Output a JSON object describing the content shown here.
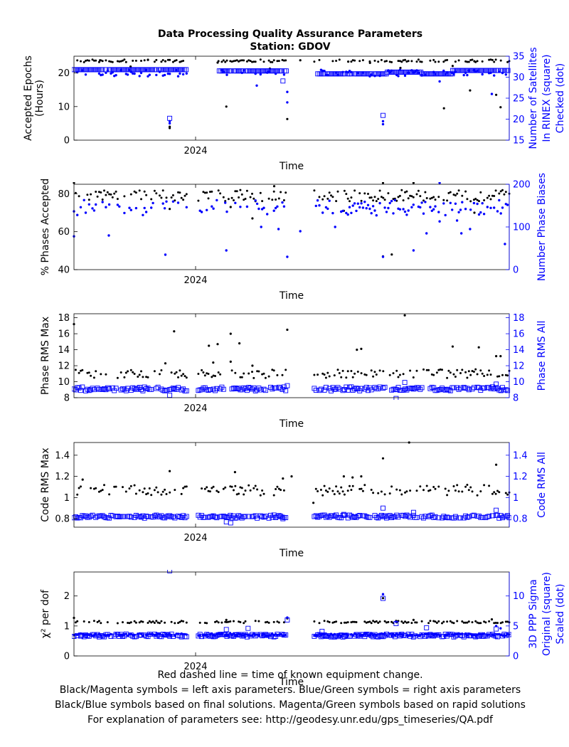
{
  "title": {
    "line1": "Data Processing Quality Assurance Parameters",
    "line2": "Station: GDOV"
  },
  "footer": {
    "line1": "Red dashed line = time of known equipment change.",
    "line2": "Black/Magenta symbols = left axis parameters. Blue/Green symbols = right axis parameters",
    "line3": "Black/Blue symbols based on final solutions.  Magenta/Green symbols based on rapid solutions",
    "line4": "For explanation of parameters see: http://geodesy.unr.edu/gps_timeseries/QA.pdf"
  },
  "colors": {
    "left": "#000000",
    "right": "#0000ff",
    "axes": "#000000"
  },
  "chart_data": [
    {
      "type": "scatter",
      "xlabel": "Time",
      "xtick": "2024",
      "ylabel_left": [
        "Accepted Epochs",
        "(Hours)"
      ],
      "ylabel_right": [
        "Number of Satellites",
        "In RINEX (square)",
        "Checked (dot)"
      ],
      "ylim_left": [
        0,
        25
      ],
      "yticks_left": [
        0,
        10,
        20
      ],
      "ylim_right": [
        15,
        35
      ],
      "yticks_right": [
        15,
        20,
        25,
        30,
        35
      ],
      "grid": false,
      "left_base": 23.6,
      "left_noise": 0.4,
      "left_density": 0.55,
      "left_outliers": [
        [
          0.22,
          3.6
        ],
        [
          0.22,
          4.0
        ],
        [
          0.35,
          10.0
        ],
        [
          0.49,
          6.3
        ],
        [
          0.97,
          13.5
        ],
        [
          0.98,
          9.8
        ],
        [
          0.52,
          23.8
        ],
        [
          0.92,
          23.5
        ],
        [
          0.63,
          23.4
        ],
        [
          0.68,
          23.0
        ],
        [
          0.75,
          21.5
        ],
        [
          0.87,
          22.1
        ],
        [
          0.13,
          21.9
        ],
        [
          0.06,
          23.8
        ],
        [
          0.91,
          14.8
        ],
        [
          0.85,
          9.5
        ],
        [
          0.21,
          23.5
        ],
        [
          0.33,
          23.1
        ],
        [
          0.45,
          21.3
        ],
        [
          0.17,
          23.9
        ]
      ],
      "right_square_segments": [
        [
          0.0,
          0.33,
          31.8
        ],
        [
          0.33,
          0.54,
          31.5
        ],
        [
          0.56,
          0.72,
          30.8
        ],
        [
          0.72,
          0.8,
          31.2
        ],
        [
          0.8,
          0.87,
          30.8
        ],
        [
          0.87,
          1.0,
          31.6
        ]
      ],
      "right_square_outliers": [
        [
          0.22,
          20.2
        ],
        [
          0.48,
          29.1
        ],
        [
          0.71,
          20.9
        ]
      ],
      "right_dot_base": 31.0,
      "right_dot_noise": 0.8,
      "right_dot_density": 0.45,
      "right_dot_outliers": [
        [
          0.22,
          19.0
        ],
        [
          0.22,
          19.5
        ],
        [
          0.49,
          24.0
        ],
        [
          0.49,
          26.5
        ],
        [
          0.42,
          28.0
        ],
        [
          0.71,
          19.5
        ],
        [
          0.71,
          18.8
        ],
        [
          0.96,
          26.0
        ],
        [
          0.84,
          29.0
        ]
      ],
      "gaps": [
        [
          0.26,
          0.33
        ],
        [
          0.49,
          0.55
        ]
      ]
    },
    {
      "type": "scatter",
      "xlabel": "Time",
      "xtick": "2024",
      "ylabel_left": [
        "% Phases Accepted"
      ],
      "ylabel_right": [
        "Number Phase Biases"
      ],
      "ylim_left": [
        40,
        85
      ],
      "yticks_left": [
        40,
        60,
        80
      ],
      "ylim_right": [
        0,
        200
      ],
      "yticks_right": [
        0,
        100,
        200
      ],
      "grid": false,
      "left_base": 79.0,
      "left_noise": 3.0,
      "left_density": 0.65,
      "left_outliers": [
        [
          0.71,
          47.0
        ],
        [
          0.73,
          48.0
        ],
        [
          0.41,
          67.0
        ],
        [
          0.92,
          70.0
        ],
        [
          0.62,
          71.0
        ],
        [
          0.22,
          72.0
        ],
        [
          0.36,
          73.0
        ],
        [
          0.46,
          84.0
        ],
        [
          0.0,
          86.0
        ],
        [
          0.78,
          86.0
        ],
        [
          0.71,
          86.0
        ]
      ],
      "right_dot_base": 145,
      "right_dot_noise": 18,
      "right_dot_density": 0.6,
      "right_dot_outliers": [
        [
          0.08,
          80.0
        ],
        [
          0.21,
          35.0
        ],
        [
          0.35,
          45.0
        ],
        [
          0.49,
          30.0
        ],
        [
          0.78,
          45.0
        ],
        [
          0.81,
          85.0
        ],
        [
          0.84,
          113.0
        ],
        [
          0.88,
          115.0
        ],
        [
          0.89,
          85.0
        ],
        [
          0.91,
          95.0
        ],
        [
          0.0,
          78.0
        ],
        [
          0.99,
          60.0
        ],
        [
          0.47,
          95.0
        ],
        [
          0.71,
          30.0
        ],
        [
          0.84,
          205.0
        ],
        [
          0.52,
          90.0
        ],
        [
          0.6,
          100.0
        ],
        [
          0.43,
          100.0
        ]
      ],
      "gaps": [
        [
          0.26,
          0.285
        ],
        [
          0.49,
          0.55
        ]
      ]
    },
    {
      "type": "scatter",
      "xlabel": "Time",
      "xtick": "2024",
      "ylabel_left": [
        "Phase RMS Max"
      ],
      "ylabel_right": [
        "Phase RMS All"
      ],
      "ylim_left": [
        8,
        18.5
      ],
      "yticks_left": [
        8,
        10,
        12,
        14,
        16,
        18
      ],
      "ylim_right": [
        8,
        18.5
      ],
      "yticks_right": [
        8,
        10,
        12,
        14,
        16,
        18
      ],
      "grid": false,
      "left_base": 11.0,
      "left_noise": 0.55,
      "left_density": 0.6,
      "left_outliers": [
        [
          0.0,
          17.2
        ],
        [
          0.23,
          16.3
        ],
        [
          0.31,
          14.5
        ],
        [
          0.33,
          14.7
        ],
        [
          0.36,
          16.0
        ],
        [
          0.38,
          14.8
        ],
        [
          0.49,
          16.5
        ],
        [
          0.36,
          12.5
        ],
        [
          0.32,
          12.4
        ],
        [
          0.65,
          14.0
        ],
        [
          0.66,
          14.1
        ],
        [
          0.76,
          18.3
        ],
        [
          0.87,
          14.4
        ],
        [
          0.93,
          14.3
        ],
        [
          0.97,
          13.2
        ],
        [
          0.98,
          13.2
        ],
        [
          0.41,
          12.0
        ],
        [
          0.21,
          12.3
        ]
      ],
      "right_square_base": 9.1,
      "right_square_noise": 0.25,
      "right_square_density": 0.85,
      "right_square_outliers": [
        [
          0.22,
          8.3
        ],
        [
          0.74,
          7.9
        ],
        [
          0.76,
          9.9
        ],
        [
          0.97,
          9.7
        ],
        [
          0.49,
          9.5
        ]
      ],
      "gaps": [
        [
          0.26,
          0.285
        ],
        [
          0.49,
          0.55
        ]
      ]
    },
    {
      "type": "scatter",
      "xlabel": "Time",
      "xtick": "2024",
      "ylabel_left": [
        "Code RMS Max"
      ],
      "ylabel_right": [
        "Code RMS All"
      ],
      "ylim_left": [
        0.72,
        1.52
      ],
      "yticks_left": [
        0.8,
        1.0,
        1.2,
        1.4
      ],
      "ylim_right": [
        0.72,
        1.52
      ],
      "yticks_right": [
        0.8,
        1.0,
        1.2,
        1.4
      ],
      "grid": false,
      "left_base": 1.07,
      "left_noise": 0.05,
      "left_density": 0.6,
      "left_outliers": [
        [
          0.22,
          1.25
        ],
        [
          0.37,
          1.24
        ],
        [
          0.5,
          1.2
        ],
        [
          0.55,
          0.95
        ],
        [
          0.71,
          1.37
        ],
        [
          0.77,
          1.52
        ],
        [
          0.97,
          1.31
        ],
        [
          0.02,
          1.17
        ],
        [
          0.48,
          1.18
        ],
        [
          0.62,
          1.2
        ],
        [
          0.64,
          1.19
        ],
        [
          0.66,
          1.2
        ]
      ],
      "right_square_base": 0.82,
      "right_square_noise": 0.015,
      "right_square_density": 0.85,
      "right_square_outliers": [
        [
          0.35,
          0.77
        ],
        [
          0.36,
          0.76
        ],
        [
          0.71,
          0.9
        ],
        [
          0.97,
          0.88
        ],
        [
          0.48,
          0.8
        ],
        [
          0.62,
          0.84
        ],
        [
          0.78,
          0.86
        ]
      ],
      "gaps": [
        [
          0.26,
          0.285
        ],
        [
          0.49,
          0.55
        ]
      ]
    },
    {
      "type": "scatter",
      "xlabel": "Time",
      "xtick": "2024",
      "ylabel_left": [
        "χ² per dof"
      ],
      "ylabel_right": [
        "3D PPP Sigma",
        "Original (square)",
        "Scaled (dot)"
      ],
      "ylim_left": [
        0,
        2.8
      ],
      "yticks_left": [
        0,
        1,
        2
      ],
      "ylim_right": [
        0,
        14
      ],
      "yticks_right": [
        0,
        5,
        10
      ],
      "grid": false,
      "left_base": 1.13,
      "left_noise": 0.04,
      "left_density": 0.55,
      "left_outliers": [
        [
          0.0,
          1.27
        ],
        [
          0.49,
          1.25
        ],
        [
          0.71,
          1.93
        ],
        [
          0.96,
          1.22
        ],
        [
          0.74,
          1.17
        ],
        [
          0.78,
          1.2
        ],
        [
          0.35,
          1.2
        ]
      ],
      "right_square_base": 3.4,
      "right_square_noise": 0.25,
      "right_square_density": 0.85,
      "right_square_outliers": [
        [
          0.22,
          14.2
        ],
        [
          0.71,
          9.6
        ],
        [
          0.49,
          6.0
        ],
        [
          0.74,
          5.4
        ],
        [
          0.4,
          4.6
        ],
        [
          0.57,
          4.1
        ],
        [
          0.97,
          4.5
        ],
        [
          0.35,
          4.4
        ],
        [
          0.81,
          4.7
        ]
      ],
      "right_dot_base": 3.55,
      "right_dot_noise": 0.2,
      "right_dot_density": 0.85,
      "right_dot_outliers": [
        [
          0.71,
          10.3
        ],
        [
          0.49,
          6.4
        ],
        [
          0.74,
          5.7
        ],
        [
          0.97,
          5.0
        ],
        [
          0.98,
          4.6
        ]
      ],
      "gaps": [
        [
          0.26,
          0.285
        ],
        [
          0.49,
          0.55
        ]
      ]
    }
  ]
}
